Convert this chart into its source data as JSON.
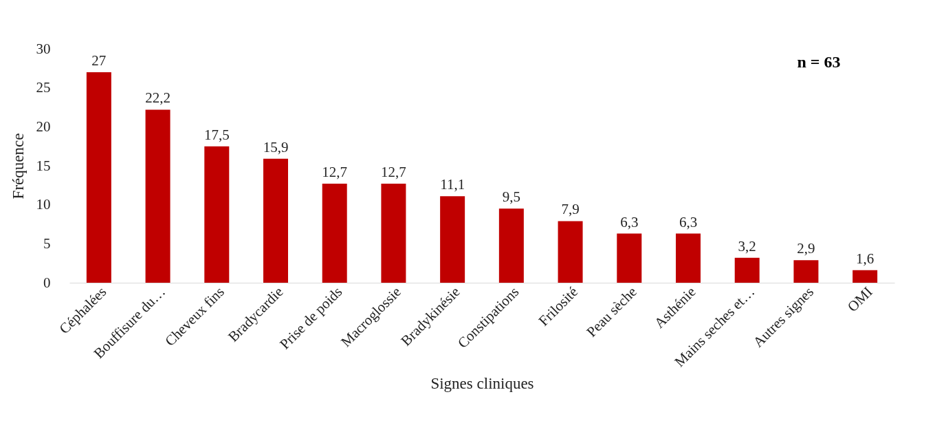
{
  "chart_data": {
    "type": "bar",
    "xlabel": "Signes cliniques",
    "ylabel": "Fréquence",
    "categories": [
      "Céphalées",
      "Bouffisure du…",
      "Cheveux fins",
      "Bradycardie",
      "Prise de poids",
      "Macroglossie",
      "Bradykinésie",
      "Constipations",
      "Frilosité",
      "Peau sèche",
      "Asthénie",
      "Mains seches et…",
      "Autres signes",
      "OMI"
    ],
    "values": [
      27,
      22.2,
      17.5,
      15.9,
      12.7,
      12.7,
      11.1,
      9.5,
      7.9,
      6.3,
      6.3,
      3.2,
      2.9,
      1.6
    ],
    "value_labels": [
      "27",
      "22,2",
      "17,5",
      "15,9",
      "12,7",
      "12,7",
      "11,1",
      "9,5",
      "7,9",
      "6,3",
      "6,3",
      "3,2",
      "2,9",
      "1,6"
    ],
    "color": "#c00000",
    "ylim": [
      0,
      30
    ],
    "yticks": [
      0,
      5,
      10,
      15,
      20,
      25,
      30
    ],
    "grid": false,
    "annotations": [
      "n = 63"
    ]
  }
}
